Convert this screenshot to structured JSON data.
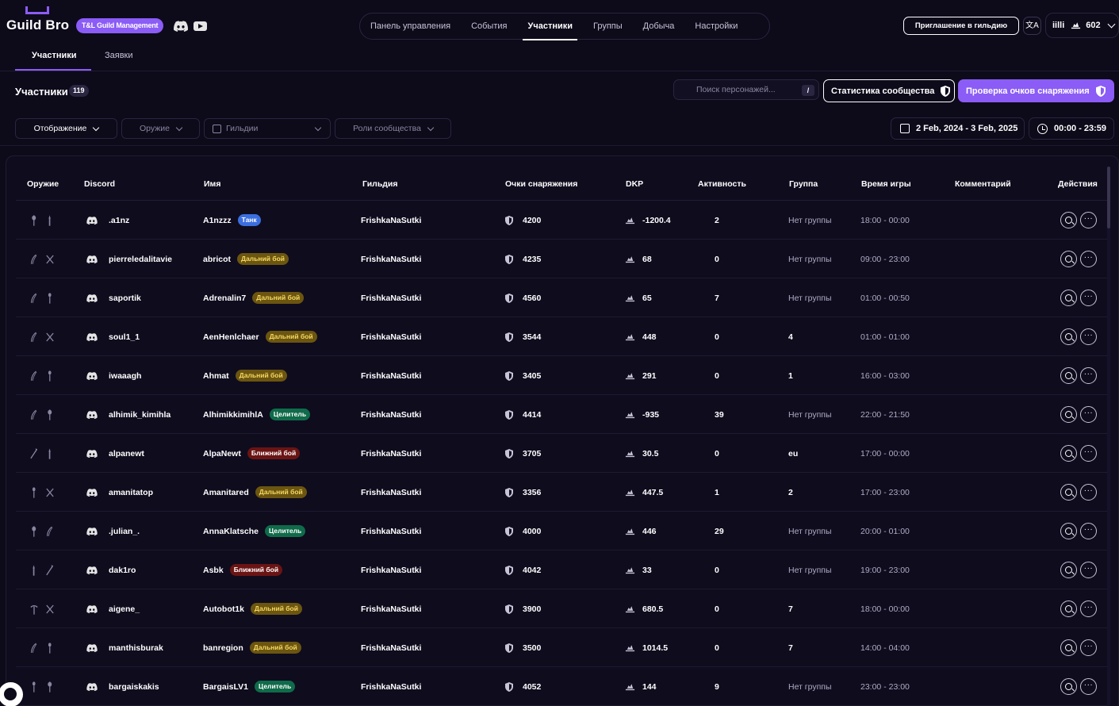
{
  "brand": {
    "name": "Guild Bro",
    "badge": "T&L Guild Management"
  },
  "nav": {
    "items": [
      "Панель управления",
      "События",
      "Участники",
      "Группы",
      "Добыча",
      "Настройки"
    ],
    "active": "Участники"
  },
  "header_right": {
    "invite": "Приглашение в гильдию",
    "translate": "文A",
    "user_name": "iilli",
    "user_dkp": "602"
  },
  "subtabs": {
    "members": "Участники",
    "requests": "Заявки"
  },
  "toolbar": {
    "title": "Участники",
    "count": "119",
    "search_placeholder": "Поиск персонажей...",
    "search_shortcut": "/",
    "stats_button": "Статистика сообщества",
    "gear_button": "Проверка очков снаряжения"
  },
  "filters": {
    "display": "Отображение",
    "weapon": "Оружие",
    "guilds": "Гильдии",
    "roles": "Роли сообщества",
    "date_range": "2 Feb, 2024 - 3 Feb, 2025",
    "time_range": "00:00 - 23:59"
  },
  "columns": [
    "Оружие",
    "Discord",
    "Имя",
    "Гильдия",
    "Очки снаряжения",
    "DKP",
    "Активность",
    "Группа",
    "Время игры",
    "Комментарий",
    "Действия"
  ],
  "role_colors": {
    "Танк": "#3b6fe0",
    "Дальний бой": "#6b5510",
    "Целитель": "#0f6b4a",
    "Ближний бой": "#6b1414"
  },
  "role_text_colors": {
    "Танк": "#ffffff",
    "Дальний бой": "#f5d860",
    "Целитель": "#ffffff",
    "Ближний бой": "#ffffff"
  },
  "rows": [
    {
      "weapons": [
        "staff-icon",
        "wand-icon"
      ],
      "discord": ".a1nz",
      "name": "A1nzzz",
      "role": "Танк",
      "guild": "FrishkaNaSutki",
      "gear": "4200",
      "dkp": "-1200.4",
      "activity": "2",
      "group": "Нет группы",
      "group_muted": true,
      "time": "18:00 - 00:00"
    },
    {
      "weapons": [
        "bow-icon",
        "crossbow-icon"
      ],
      "discord": "pierreledalitavie",
      "name": "abricot",
      "role": "Дальний бой",
      "guild": "FrishkaNaSutki",
      "gear": "4235",
      "dkp": "68",
      "activity": "0",
      "group": "Нет группы",
      "group_muted": true,
      "time": "09:00 - 23:00"
    },
    {
      "weapons": [
        "bow-icon",
        "dagger-icon"
      ],
      "discord": "saportik",
      "name": "Adrenalin7",
      "role": "Дальний бой",
      "guild": "FrishkaNaSutki",
      "gear": "4560",
      "dkp": "65",
      "activity": "7",
      "group": "Нет группы",
      "group_muted": true,
      "time": "01:00 - 00:50"
    },
    {
      "weapons": [
        "bow-icon",
        "crossbow-icon"
      ],
      "discord": "soul1_1",
      "name": "AenHenlchaer",
      "role": "Дальний бой",
      "guild": "FrishkaNaSutki",
      "gear": "3544",
      "dkp": "448",
      "activity": "0",
      "group": "4",
      "group_muted": false,
      "time": "01:00 - 01:00"
    },
    {
      "weapons": [
        "bow-icon",
        "dagger-icon"
      ],
      "discord": "iwaaagh",
      "name": "Ahmat",
      "role": "Дальний бой",
      "guild": "FrishkaNaSutki",
      "gear": "3405",
      "dkp": "291",
      "activity": "0",
      "group": "1",
      "group_muted": false,
      "time": "16:00 - 03:00"
    },
    {
      "weapons": [
        "bow-icon",
        "staff-icon"
      ],
      "discord": "alhimik_kimihla",
      "name": "AlhimikkimihlA",
      "role": "Целитель",
      "guild": "FrishkaNaSutki",
      "gear": "4414",
      "dkp": "-935",
      "activity": "39",
      "group": "Нет группы",
      "group_muted": true,
      "time": "22:00 - 21:50"
    },
    {
      "weapons": [
        "spear-icon",
        "wand-icon"
      ],
      "discord": "alpanewt",
      "name": "AlpaNewt",
      "role": "Ближний бой",
      "guild": "FrishkaNaSutki",
      "gear": "3705",
      "dkp": "30.5",
      "activity": "0",
      "group": "eu",
      "group_muted": false,
      "time": "17:00 - 00:00"
    },
    {
      "weapons": [
        "dagger-icon",
        "crossbow-icon"
      ],
      "discord": "amanitatop",
      "name": "Amanitared",
      "role": "Дальний бой",
      "guild": "FrishkaNaSutki",
      "gear": "3356",
      "dkp": "447.5",
      "activity": "1",
      "group": "2",
      "group_muted": false,
      "time": "17:00 - 23:00"
    },
    {
      "weapons": [
        "staff-icon",
        "bow-icon"
      ],
      "discord": ".julian_.",
      "name": "AnnaKlatsche",
      "role": "Целитель",
      "guild": "FrishkaNaSutki",
      "gear": "4000",
      "dkp": "446",
      "activity": "29",
      "group": "Нет группы",
      "group_muted": true,
      "time": "20:00 - 01:00"
    },
    {
      "weapons": [
        "wand-icon",
        "spear-icon"
      ],
      "discord": "dak1ro",
      "name": "Asbk",
      "role": "Ближний бой",
      "guild": "FrishkaNaSutki",
      "gear": "4042",
      "dkp": "33",
      "activity": "0",
      "group": "Нет группы",
      "group_muted": true,
      "time": "19:00 - 23:00"
    },
    {
      "weapons": [
        "pickaxe-icon",
        "crossbow-icon"
      ],
      "discord": "aigene_",
      "name": "Autobot1k",
      "role": "Дальний бой",
      "guild": "FrishkaNaSutki",
      "gear": "3900",
      "dkp": "680.5",
      "activity": "0",
      "group": "7",
      "group_muted": false,
      "time": "18:00 - 00:00"
    },
    {
      "weapons": [
        "bow-icon",
        "dagger-icon"
      ],
      "discord": "manthisburak",
      "name": "banregion",
      "role": "Дальний бой",
      "guild": "FrishkaNaSutki",
      "gear": "3500",
      "dkp": "1014.5",
      "activity": "0",
      "group": "7",
      "group_muted": false,
      "time": "14:00 - 04:00"
    },
    {
      "weapons": [
        "dagger-icon",
        "staff-icon"
      ],
      "discord": "bargaiskakis",
      "name": "BargaisLV1",
      "role": "Целитель",
      "guild": "FrishkaNaSutki",
      "gear": "4052",
      "dkp": "144",
      "activity": "9",
      "group": "Нет группы",
      "group_muted": true,
      "time": "23:00 - 23:00"
    }
  ]
}
